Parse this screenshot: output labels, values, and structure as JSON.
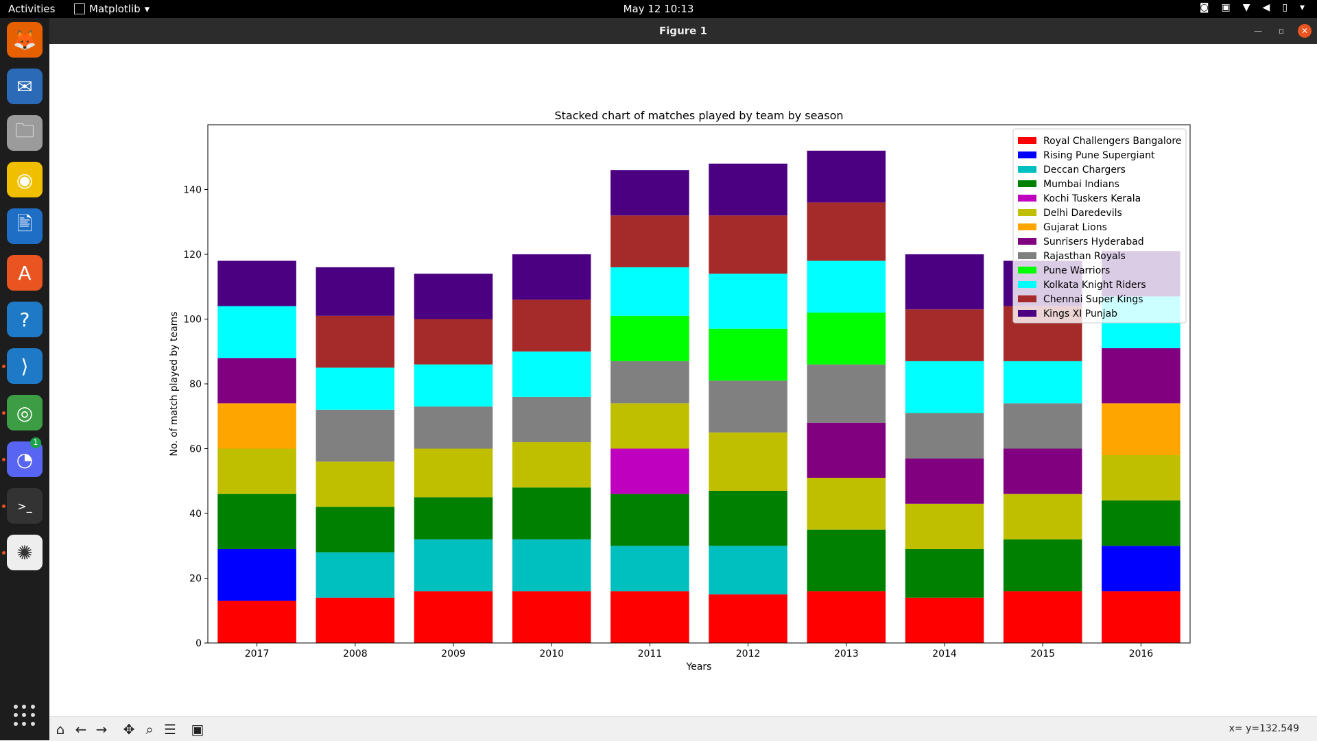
{
  "topbar": {
    "activities": "Activities",
    "app_menu": "Matplotlib",
    "clock": "May 12  10:13"
  },
  "dock": {
    "items": [
      {
        "name": "firefox-icon",
        "color": "#e66000",
        "glyph": "🦊"
      },
      {
        "name": "thunderbird-icon",
        "color": "#2a6ab7",
        "glyph": "✉"
      },
      {
        "name": "files-icon",
        "color": "#9b9b9b",
        "glyph": "🗀"
      },
      {
        "name": "rhythmbox-icon",
        "color": "#f0c000",
        "glyph": "◉"
      },
      {
        "name": "writer-icon",
        "color": "#1f6ec6",
        "glyph": "🖹"
      },
      {
        "name": "software-icon",
        "color": "#e95420",
        "glyph": "A"
      },
      {
        "name": "help-icon",
        "color": "#1e7ac6",
        "glyph": "?"
      },
      {
        "name": "vscode-icon",
        "color": "#1e7ac6",
        "glyph": "⟩"
      },
      {
        "name": "chrome-icon",
        "color": "#3c9d45",
        "glyph": "◎"
      },
      {
        "name": "discord-icon",
        "color": "#5865f2",
        "glyph": "◔"
      },
      {
        "name": "terminal-icon",
        "color": "#333333",
        "glyph": ">_"
      },
      {
        "name": "matplotlib-icon",
        "color": "#eeeeee",
        "glyph": "✺"
      }
    ],
    "discord_badge": "1"
  },
  "window": {
    "title": "Figure 1"
  },
  "toolbar": {
    "coords": "x= y=132.549"
  },
  "colors": {
    "Royal Challengers Bangalore": "#ff0000",
    "Rising Pune Supergiant": "#0000ff",
    "Deccan Chargers": "#00bfbf",
    "Mumbai Indians": "#008000",
    "Kochi Tuskers Kerala": "#bf00bf",
    "Delhi Daredevils": "#bfbf00",
    "Gujarat Lions": "#ffa500",
    "Sunrisers Hyderabad": "#800080",
    "Rajasthan Royals": "#808080",
    "Pune Warriors": "#00ff00",
    "Kolkata Knight Riders": "#00ffff",
    "Chennai Super Kings": "#a52a2a",
    "Kings XI Punjab": "#4b0082"
  },
  "chart_data": {
    "type": "bar",
    "stacked": true,
    "title": "Stacked chart of matches played by team by season",
    "xlabel": "Years",
    "ylabel": "No. of match played by teams",
    "categories": [
      "2017",
      "2008",
      "2009",
      "2010",
      "2011",
      "2012",
      "2013",
      "2014",
      "2015",
      "2016"
    ],
    "ylim": [
      0,
      160
    ],
    "yticks": [
      0,
      20,
      40,
      60,
      80,
      100,
      120,
      140
    ],
    "legend_position": "top-right",
    "series": [
      {
        "name": "Royal Challengers Bangalore",
        "values": [
          13,
          14,
          16,
          16,
          16,
          15,
          16,
          14,
          16,
          16
        ]
      },
      {
        "name": "Rising Pune Supergiant",
        "values": [
          16,
          0,
          0,
          0,
          0,
          0,
          0,
          0,
          0,
          14
        ]
      },
      {
        "name": "Deccan Chargers",
        "values": [
          0,
          14,
          16,
          16,
          14,
          15,
          0,
          0,
          0,
          0
        ]
      },
      {
        "name": "Mumbai Indians",
        "values": [
          17,
          14,
          13,
          16,
          16,
          17,
          19,
          15,
          16,
          14
        ]
      },
      {
        "name": "Kochi Tuskers Kerala",
        "values": [
          0,
          0,
          0,
          0,
          14,
          0,
          0,
          0,
          0,
          0
        ]
      },
      {
        "name": "Delhi Daredevils",
        "values": [
          14,
          14,
          15,
          14,
          14,
          18,
          16,
          14,
          14,
          14
        ]
      },
      {
        "name": "Gujarat Lions",
        "values": [
          14,
          0,
          0,
          0,
          0,
          0,
          0,
          0,
          0,
          16
        ]
      },
      {
        "name": "Sunrisers Hyderabad",
        "values": [
          14,
          0,
          0,
          0,
          0,
          0,
          17,
          14,
          14,
          17
        ]
      },
      {
        "name": "Rajasthan Royals",
        "values": [
          0,
          16,
          13,
          14,
          13,
          16,
          18,
          14,
          14,
          0
        ]
      },
      {
        "name": "Pune Warriors",
        "values": [
          0,
          0,
          0,
          0,
          14,
          16,
          16,
          0,
          0,
          0
        ]
      },
      {
        "name": "Kolkata Knight Riders",
        "values": [
          16,
          13,
          13,
          14,
          15,
          17,
          16,
          16,
          13,
          16
        ]
      },
      {
        "name": "Chennai Super Kings",
        "values": [
          0,
          16,
          14,
          16,
          16,
          18,
          18,
          16,
          17,
          0
        ]
      },
      {
        "name": "Kings XI Punjab",
        "values": [
          14,
          15,
          14,
          14,
          14,
          16,
          16,
          17,
          14,
          14
        ]
      }
    ]
  }
}
